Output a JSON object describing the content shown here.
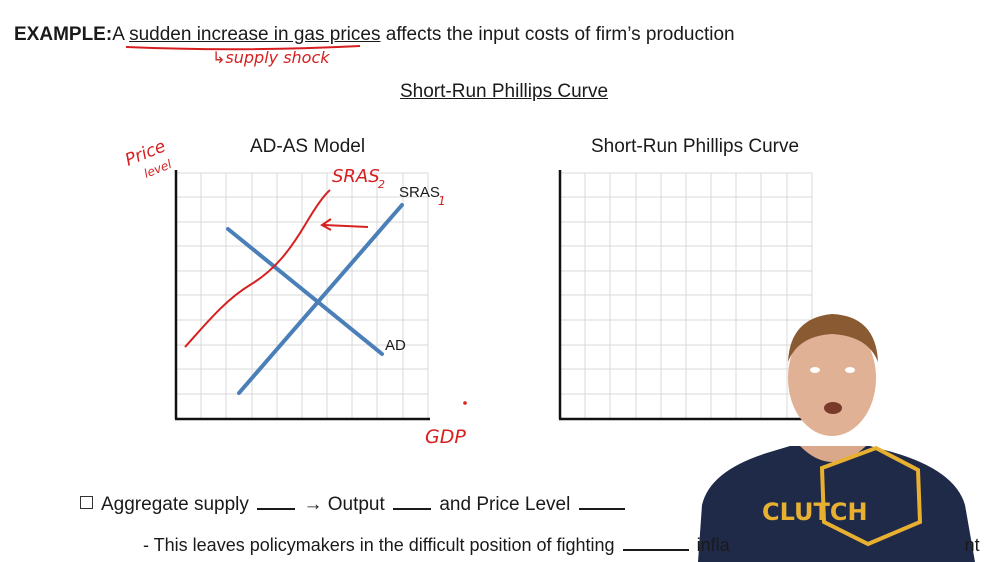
{
  "example": {
    "label": "EXAMPLE:",
    "pre": "A ",
    "underlined": "sudden increase in gas prices",
    "post": " affects the input costs of firm’s production",
    "annotation": "↳supply shock"
  },
  "section_title": "Short-Run Phillips Curve",
  "adas": {
    "title": "AD-AS Model",
    "y_annotation_1": "Price",
    "y_annotation_2": "level",
    "x_annotation": "GDP",
    "sras1_label": "SRAS",
    "sras1_sub": "1",
    "sras2_label": "SRAS",
    "sras2_sub": "2",
    "ad_label": "AD"
  },
  "srpc": {
    "title": "Short-Run Phillips Curve"
  },
  "question": {
    "p1": "Aggregate supply",
    "arrow": "→",
    "p2": "Output",
    "p3": "and Price Level"
  },
  "note": {
    "p1": "- This leaves policymakers in the difficult position of fighting",
    "p2": "infla",
    "p3": "nt"
  },
  "colors": {
    "curve": "#4a7fb8",
    "ink": "#d62020",
    "grid": "#d9d9d9",
    "shirt": "#1f2a48",
    "logo": "#e8b030"
  },
  "presenter": {
    "logo_text": "CLUTCH"
  }
}
